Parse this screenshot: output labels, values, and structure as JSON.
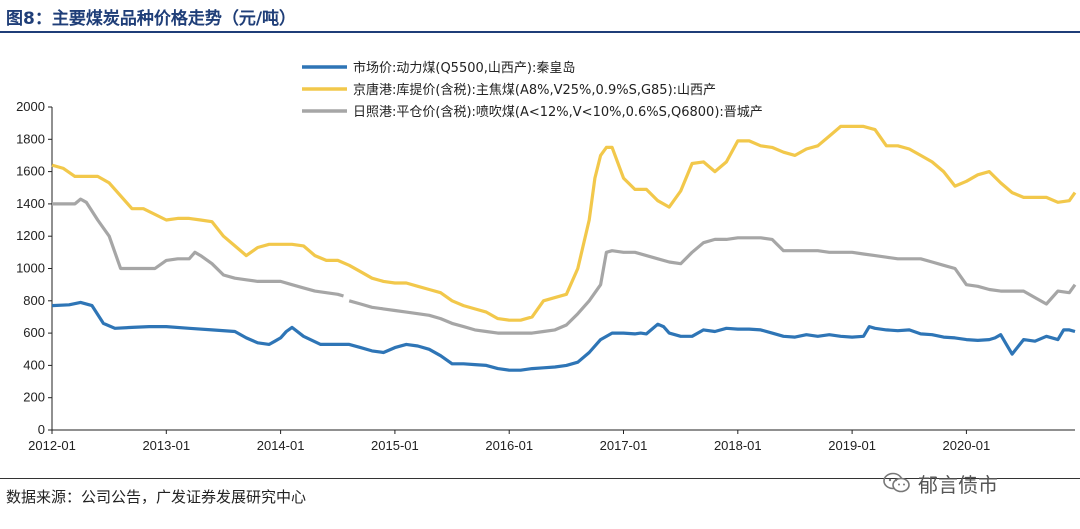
{
  "figure": {
    "title": "图8：主要煤炭品种价格走势（元/吨）",
    "source": "数据来源：公司公告，广发证券发展研究中心",
    "watermark": "郁言债市"
  },
  "chart_data": {
    "type": "line",
    "title": "主要煤炭品种价格走势（元/吨）",
    "xlabel": "",
    "ylabel": "",
    "ylim": [
      0,
      2000
    ],
    "yticks": [
      0,
      200,
      400,
      600,
      800,
      1000,
      1200,
      1400,
      1600,
      1800,
      2000
    ],
    "xlim": [
      2012.0,
      2020.95
    ],
    "xticks": [
      {
        "value": 2012.0,
        "label": "2012-01"
      },
      {
        "value": 2013.0,
        "label": "2013-01"
      },
      {
        "value": 2014.0,
        "label": "2014-01"
      },
      {
        "value": 2015.0,
        "label": "2015-01"
      },
      {
        "value": 2016.0,
        "label": "2016-01"
      },
      {
        "value": 2017.0,
        "label": "2017-01"
      },
      {
        "value": 2018.0,
        "label": "2018-01"
      },
      {
        "value": 2019.0,
        "label": "2019-01"
      },
      {
        "value": 2020.0,
        "label": "2020-01"
      }
    ],
    "legend_position": "top",
    "series": [
      {
        "name": "市场价:动力煤(Q5500,山西产):秦皇岛",
        "color": "#2e75b6",
        "x": [
          2012.0,
          2012.15,
          2012.25,
          2012.35,
          2012.45,
          2012.55,
          2012.7,
          2012.85,
          2013.0,
          2013.2,
          2013.4,
          2013.6,
          2013.7,
          2013.8,
          2013.9,
          2013.95,
          2014.0,
          2014.05,
          2014.1,
          2014.2,
          2014.35,
          2014.5,
          2014.6,
          2014.7,
          2014.8,
          2014.9,
          2015.0,
          2015.1,
          2015.2,
          2015.3,
          2015.4,
          2015.5,
          2015.6,
          2015.7,
          2015.8,
          2015.9,
          2016.0,
          2016.1,
          2016.2,
          2016.3,
          2016.4,
          2016.5,
          2016.6,
          2016.7,
          2016.8,
          2016.9,
          2017.0,
          2017.1,
          2017.15,
          2017.2,
          2017.3,
          2017.35,
          2017.4,
          2017.5,
          2017.6,
          2017.7,
          2017.8,
          2017.9,
          2018.0,
          2018.1,
          2018.2,
          2018.3,
          2018.4,
          2018.5,
          2018.6,
          2018.7,
          2018.8,
          2018.9,
          2019.0,
          2019.1,
          2019.15,
          2019.2,
          2019.3,
          2019.4,
          2019.5,
          2019.6,
          2019.7,
          2019.8,
          2019.9,
          2020.0,
          2020.1,
          2020.2,
          2020.25,
          2020.3,
          2020.35,
          2020.4,
          2020.5,
          2020.6,
          2020.7,
          2020.8,
          2020.85,
          2020.9,
          2020.95
        ],
        "values": [
          770,
          775,
          790,
          770,
          660,
          630,
          635,
          640,
          640,
          630,
          620,
          610,
          570,
          540,
          530,
          550,
          570,
          610,
          635,
          580,
          530,
          530,
          530,
          510,
          490,
          480,
          510,
          530,
          520,
          500,
          460,
          410,
          410,
          405,
          400,
          380,
          370,
          370,
          380,
          385,
          390,
          400,
          420,
          480,
          560,
          600,
          600,
          595,
          600,
          595,
          655,
          640,
          600,
          580,
          580,
          620,
          610,
          630,
          625,
          625,
          620,
          600,
          580,
          575,
          590,
          580,
          590,
          580,
          575,
          580,
          640,
          630,
          620,
          615,
          620,
          595,
          590,
          575,
          570,
          560,
          555,
          560,
          570,
          590,
          530,
          470,
          560,
          550,
          580,
          560,
          620,
          620,
          610
        ]
      },
      {
        "name": "京唐港:库提价(含税):主焦煤(A8%,V25%,0.9%S,G85):山西产",
        "color": "#f2c84b",
        "x": [
          2012.0,
          2012.1,
          2012.2,
          2012.4,
          2012.5,
          2012.7,
          2012.8,
          2013.0,
          2013.1,
          2013.2,
          2013.3,
          2013.4,
          2013.5,
          2013.6,
          2013.7,
          2013.8,
          2013.9,
          2014.0,
          2014.1,
          2014.2,
          2014.3,
          2014.4,
          2014.5,
          2014.6,
          2014.7,
          2014.8,
          2014.9,
          2015.0,
          2015.1,
          2015.2,
          2015.3,
          2015.4,
          2015.5,
          2015.6,
          2015.7,
          2015.8,
          2015.9,
          2016.0,
          2016.1,
          2016.2,
          2016.3,
          2016.4,
          2016.5,
          2016.6,
          2016.7,
          2016.75,
          2016.8,
          2016.85,
          2016.9,
          2017.0,
          2017.1,
          2017.2,
          2017.3,
          2017.4,
          2017.5,
          2017.6,
          2017.7,
          2017.8,
          2017.9,
          2018.0,
          2018.1,
          2018.2,
          2018.3,
          2018.4,
          2018.5,
          2018.6,
          2018.7,
          2018.8,
          2018.9,
          2019.0,
          2019.1,
          2019.2,
          2019.3,
          2019.4,
          2019.5,
          2019.6,
          2019.7,
          2019.8,
          2019.9,
          2020.0,
          2020.1,
          2020.2,
          2020.3,
          2020.4,
          2020.5,
          2020.6,
          2020.7,
          2020.8,
          2020.9,
          2020.95
        ],
        "values": [
          1640,
          1620,
          1570,
          1570,
          1530,
          1370,
          1370,
          1300,
          1310,
          1310,
          1300,
          1290,
          1200,
          1140,
          1080,
          1130,
          1150,
          1150,
          1150,
          1140,
          1080,
          1050,
          1050,
          1020,
          980,
          940,
          920,
          910,
          910,
          890,
          870,
          850,
          800,
          770,
          750,
          730,
          690,
          680,
          680,
          700,
          800,
          820,
          840,
          1000,
          1300,
          1560,
          1700,
          1750,
          1750,
          1560,
          1490,
          1490,
          1420,
          1380,
          1480,
          1650,
          1660,
          1600,
          1660,
          1790,
          1790,
          1760,
          1750,
          1720,
          1700,
          1740,
          1760,
          1820,
          1880,
          1880,
          1880,
          1860,
          1760,
          1760,
          1740,
          1700,
          1660,
          1600,
          1510,
          1540,
          1580,
          1600,
          1530,
          1470,
          1440,
          1440,
          1440,
          1410,
          1420,
          1470
        ]
      },
      {
        "name": "日照港:平仓价(含税):喷吹煤(A<12%,V<10%,0.6%S,Q6800):晋城产",
        "color": "#a6a6a6",
        "x": [
          2012.0,
          2012.1,
          2012.2,
          2012.25,
          2012.3,
          2012.4,
          2012.5,
          2012.6,
          2012.7,
          2012.8,
          2012.9,
          2013.0,
          2013.1,
          2013.2,
          2013.25,
          2013.3,
          2013.4,
          2013.5,
          2013.6,
          2013.7,
          2013.8,
          2013.9,
          2014.0,
          2014.1,
          2014.2,
          2014.3,
          2014.4,
          2014.5,
          2014.55
        ],
        "values": [
          1400,
          1400,
          1400,
          1430,
          1410,
          1300,
          1200,
          1000,
          1000,
          1000,
          1000,
          1050,
          1060,
          1060,
          1100,
          1080,
          1030,
          960,
          940,
          930,
          920,
          920,
          920,
          900,
          880,
          860,
          850,
          840,
          830
        ],
        "x2": [
          2014.6,
          2014.7,
          2014.8,
          2014.9,
          2015.0,
          2015.1,
          2015.2,
          2015.3,
          2015.4,
          2015.5,
          2015.6,
          2015.7,
          2015.8,
          2015.9,
          2016.0,
          2016.1,
          2016.2,
          2016.3,
          2016.4,
          2016.5,
          2016.6,
          2016.7,
          2016.8,
          2016.85,
          2016.9,
          2017.0,
          2017.1,
          2017.2,
          2017.3,
          2017.4,
          2017.5,
          2017.6,
          2017.7,
          2017.8,
          2017.9,
          2018.0,
          2018.1,
          2018.2,
          2018.3,
          2018.4,
          2018.5,
          2018.6,
          2018.7,
          2018.8,
          2018.9,
          2019.0,
          2019.1,
          2019.2,
          2019.3,
          2019.4,
          2019.5,
          2019.6,
          2019.7,
          2019.8,
          2019.9,
          2020.0,
          2020.1,
          2020.2,
          2020.3,
          2020.4,
          2020.5,
          2020.6,
          2020.7,
          2020.8,
          2020.9,
          2020.95
        ],
        "values2": [
          800,
          780,
          760,
          750,
          740,
          730,
          720,
          710,
          690,
          660,
          640,
          620,
          610,
          600,
          600,
          600,
          600,
          610,
          620,
          650,
          720,
          800,
          900,
          1100,
          1110,
          1100,
          1100,
          1080,
          1060,
          1040,
          1030,
          1100,
          1160,
          1180,
          1180,
          1190,
          1190,
          1190,
          1180,
          1110,
          1110,
          1110,
          1110,
          1100,
          1100,
          1100,
          1090,
          1080,
          1070,
          1060,
          1060,
          1060,
          1040,
          1020,
          1000,
          900,
          890,
          870,
          860,
          860,
          860,
          820,
          780,
          860,
          850,
          900
        ]
      }
    ]
  }
}
